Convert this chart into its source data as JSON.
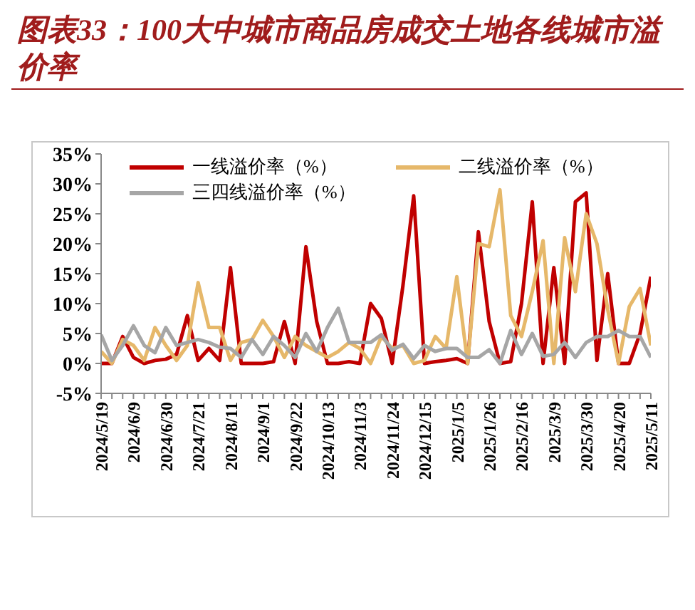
{
  "chart_data": {
    "type": "line",
    "title": "图表33：100大中城市商品房成交土地各线城市溢价率",
    "categories": [
      "2024/5/19",
      null,
      null,
      "2024/6/9",
      null,
      null,
      "2024/6/30",
      null,
      null,
      "2024/7/21",
      null,
      null,
      "2024/8/11",
      null,
      null,
      "2024/9/1",
      null,
      null,
      "2024/9/22",
      null,
      null,
      "2024/10/13",
      null,
      null,
      "2024/11/3",
      null,
      null,
      "2024/11/24",
      null,
      null,
      "2024/12/15",
      null,
      null,
      "2025/1/5",
      null,
      null,
      "2025/1/26",
      null,
      null,
      "2025/2/16",
      null,
      null,
      "2025/3/9",
      null,
      null,
      "2025/3/30",
      null,
      null,
      "2025/4/20",
      null,
      null,
      "2025/5/11"
    ],
    "series": [
      {
        "name": "一线溢价率（%）",
        "color": "#c00000",
        "values": [
          0,
          0,
          4.5,
          1,
          0,
          0.5,
          0.7,
          1.5,
          8,
          0.5,
          2.5,
          0.5,
          16,
          0,
          0,
          0,
          0.3,
          7,
          0,
          19.5,
          7,
          0,
          0,
          0.3,
          0,
          10,
          7.5,
          0,
          13,
          28,
          0,
          0.3,
          0.5,
          0.8,
          0,
          22,
          7,
          0,
          0.3,
          10,
          27,
          0,
          16,
          0,
          27,
          28.5,
          0.5,
          15,
          0,
          0,
          5,
          14.5
        ]
      },
      {
        "name": "二线溢价率（%）",
        "color": "#e6b86a",
        "values": [
          2,
          0,
          4,
          3,
          0.5,
          6,
          3,
          0.5,
          3,
          13.5,
          6,
          6,
          0.5,
          3.5,
          4,
          7.2,
          4.5,
          1,
          4.5,
          3,
          2,
          1,
          2,
          3.5,
          2.5,
          0,
          4.5,
          2.5,
          3,
          0,
          0.5,
          4.5,
          2.5,
          14.5,
          0,
          20,
          19.5,
          29,
          8,
          4.5,
          12,
          20.5,
          0,
          21,
          12,
          25,
          20,
          9,
          0,
          9.5,
          12.5,
          3
        ]
      },
      {
        "name": "三四线溢价率（%）",
        "color": "#a6a6a6",
        "values": [
          4.8,
          0.5,
          3,
          6.3,
          3,
          1.8,
          6,
          3,
          3.5,
          4,
          3.5,
          2.7,
          2.5,
          1,
          4,
          1.5,
          4.5,
          3,
          1,
          5,
          2,
          6,
          9.2,
          3.5,
          3.5,
          3.5,
          4.8,
          2.2,
          3.2,
          0.8,
          3,
          2,
          2.5,
          2.5,
          1,
          1,
          2.3,
          0,
          5.5,
          1.5,
          5,
          1.2,
          1.5,
          3.5,
          1,
          3.5,
          4.5,
          4.5,
          5.5,
          4.5,
          4.5,
          1
        ]
      }
    ],
    "ylim": [
      -5,
      35
    ],
    "yticks": [
      {
        "value": -5,
        "label": "-5%"
      },
      {
        "value": 0,
        "label": "0%"
      },
      {
        "value": 5,
        "label": "5%"
      },
      {
        "value": 10,
        "label": "10%"
      },
      {
        "value": 15,
        "label": "15%"
      },
      {
        "value": 20,
        "label": "20%"
      },
      {
        "value": 25,
        "label": "25%"
      },
      {
        "value": 30,
        "label": "30%"
      },
      {
        "value": 35,
        "label": "35%"
      }
    ],
    "grid": false,
    "legend": "top",
    "marker": "none",
    "line_style": "solid"
  }
}
